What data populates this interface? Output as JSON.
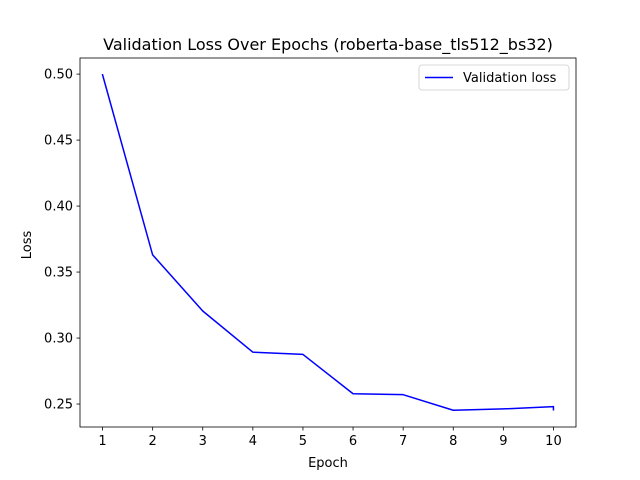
{
  "chart_data": {
    "type": "line",
    "title": "Validation Loss Over Epochs (roberta-base_tls512_bs32)",
    "xlabel": "Epoch",
    "ylabel": "Loss",
    "x": [
      1,
      2,
      3,
      4,
      5,
      6,
      7,
      8,
      9,
      10,
      10
    ],
    "series": [
      {
        "name": "Validation loss",
        "color": "#0000ff",
        "values": [
          0.4995,
          0.363,
          0.3205,
          0.2893,
          0.2876,
          0.2578,
          0.2571,
          0.2453,
          0.2463,
          0.248,
          0.2457
        ]
      }
    ],
    "xticks": [
      1,
      2,
      3,
      4,
      5,
      6,
      7,
      8,
      9,
      10
    ],
    "xtick_labels": [
      "1",
      "2",
      "3",
      "4",
      "5",
      "6",
      "7",
      "8",
      "9",
      "10"
    ],
    "yticks": [
      0.25,
      0.3,
      0.35,
      0.4,
      0.45,
      0.5
    ],
    "ytick_labels": [
      "0.25",
      "0.30",
      "0.35",
      "0.40",
      "0.45",
      "0.50"
    ],
    "xlim": [
      0.55,
      10.45
    ],
    "ylim": [
      0.2326,
      0.5122
    ],
    "grid": false,
    "legend": "top-right"
  }
}
